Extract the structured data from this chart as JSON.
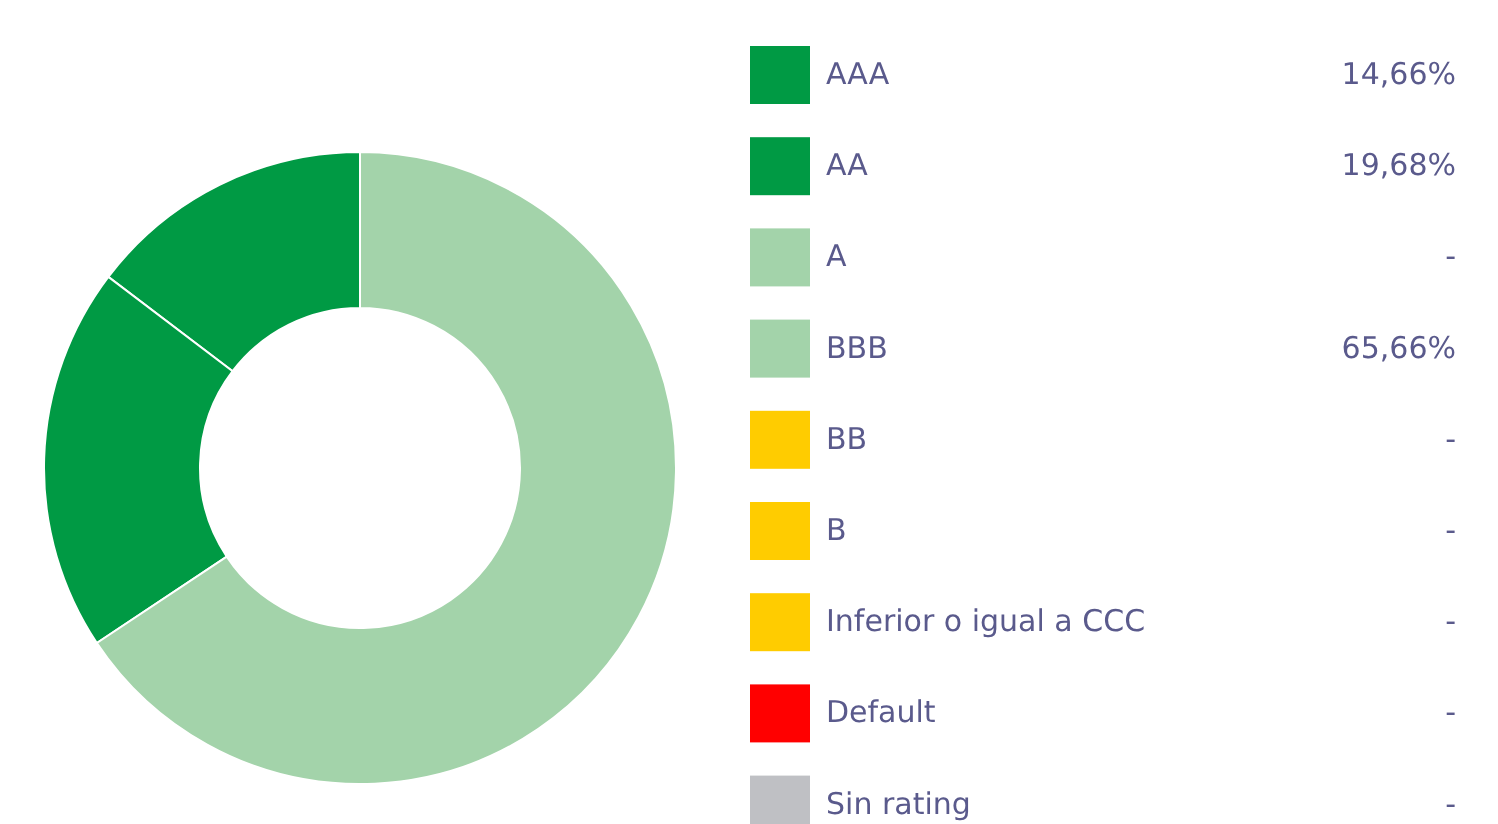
{
  "chart_data": {
    "type": "donut",
    "categories": [
      "AAA",
      "AA",
      "A",
      "BBB",
      "BB",
      "B",
      "Inferior o igual a CCC",
      "Default",
      "Sin rating"
    ],
    "values": [
      14.66,
      19.68,
      0,
      65.66,
      0,
      0,
      0,
      0,
      0
    ],
    "value_labels": [
      "14,66%",
      "19,68%",
      "-",
      "65,66%",
      "-",
      "-",
      "-",
      "-",
      "-"
    ],
    "colors": [
      "#009a44",
      "#009a44",
      "#a3d3aa",
      "#a3d3aa",
      "#ffcc00",
      "#ffcc00",
      "#ffcc00",
      "#ff0000",
      "#bfc0c4"
    ],
    "legend": "right"
  }
}
